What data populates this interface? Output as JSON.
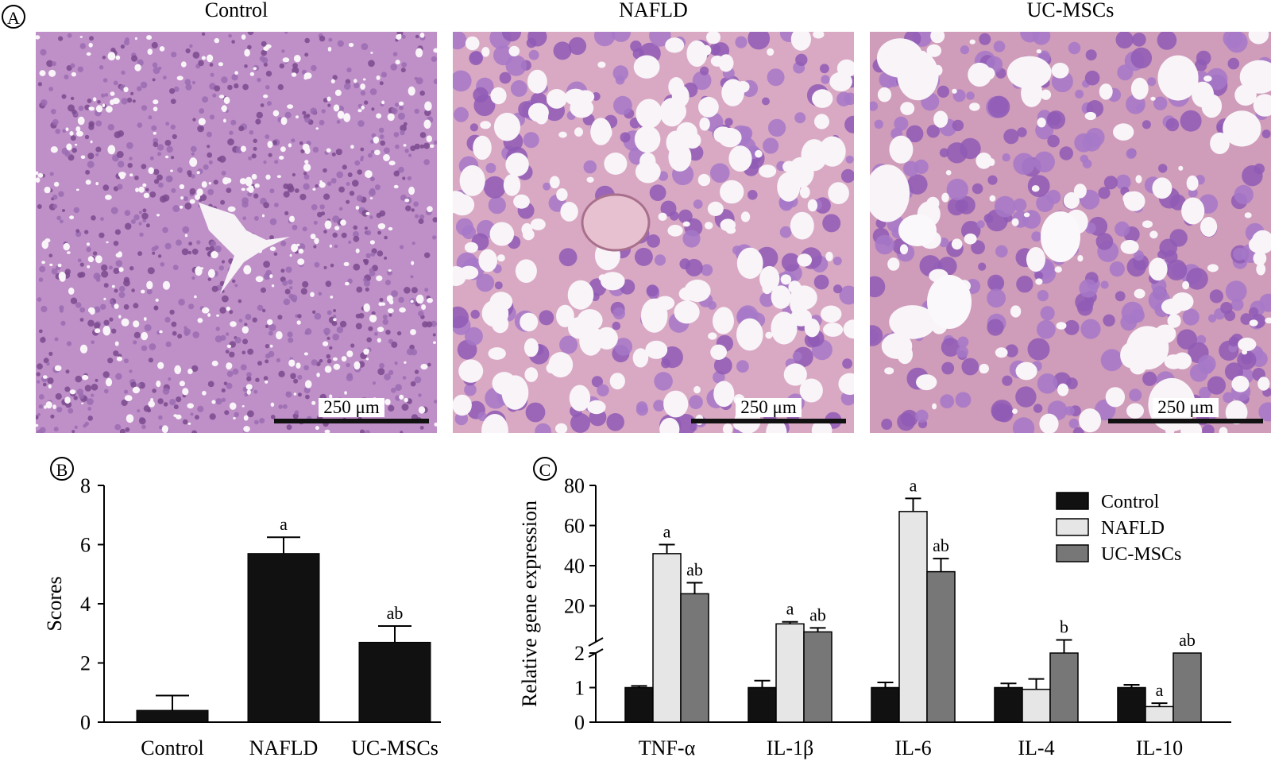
{
  "panel_labels": {
    "A": "A",
    "B": "B",
    "C": "C"
  },
  "panel_a": {
    "images": [
      {
        "title": "Control",
        "scale_label": "250 μm"
      },
      {
        "title": "NAFLD",
        "scale_label": "250 μm"
      },
      {
        "title": "UC-MSCs",
        "scale_label": "250 μm"
      }
    ]
  },
  "chart_data": [
    {
      "panel": "B",
      "type": "bar",
      "ylabel": "Scores",
      "categories": [
        "Control",
        "NAFLD",
        "UC-MSCs"
      ],
      "values": [
        0.4,
        5.7,
        2.7
      ],
      "errors": [
        0.5,
        0.55,
        0.55
      ],
      "significance": [
        "",
        "a",
        "ab"
      ],
      "ylim": [
        0,
        8
      ],
      "yticks": [
        0,
        2,
        4,
        6,
        8
      ],
      "colors": [
        "#111111",
        "#111111",
        "#111111"
      ]
    },
    {
      "panel": "C",
      "type": "bar",
      "ylabel": "Relative gene expression",
      "categories": [
        "TNF-α",
        "IL-1β",
        "IL-6",
        "IL-4",
        "IL-10"
      ],
      "axis_break": true,
      "yticks": [
        "0",
        "1",
        "2",
        "20",
        "40",
        "60",
        "80"
      ],
      "legend": "top-right",
      "series": [
        {
          "name": "Control",
          "color": "#111111",
          "values": [
            1.0,
            1.0,
            1.0,
            1.0,
            1.0
          ],
          "errors": [
            0.05,
            0.2,
            0.15,
            0.12,
            0.08
          ],
          "labels": [
            "",
            "",
            "",
            "",
            ""
          ]
        },
        {
          "name": "NAFLD",
          "color": "#e6e6e6",
          "values": [
            46,
            11,
            67,
            0.95,
            0.45
          ],
          "errors": [
            4.5,
            1,
            6.5,
            0.3,
            0.1
          ],
          "labels": [
            "a",
            "a",
            "a",
            "",
            "a"
          ]
        },
        {
          "name": "UC-MSCs",
          "color": "#777777",
          "values": [
            26,
            7,
            37,
            2,
            2
          ],
          "errors": [
            5.5,
            2,
            6.5,
            1,
            0
          ],
          "labels": [
            "ab",
            "ab",
            "ab",
            "b",
            "ab"
          ]
        }
      ]
    }
  ]
}
